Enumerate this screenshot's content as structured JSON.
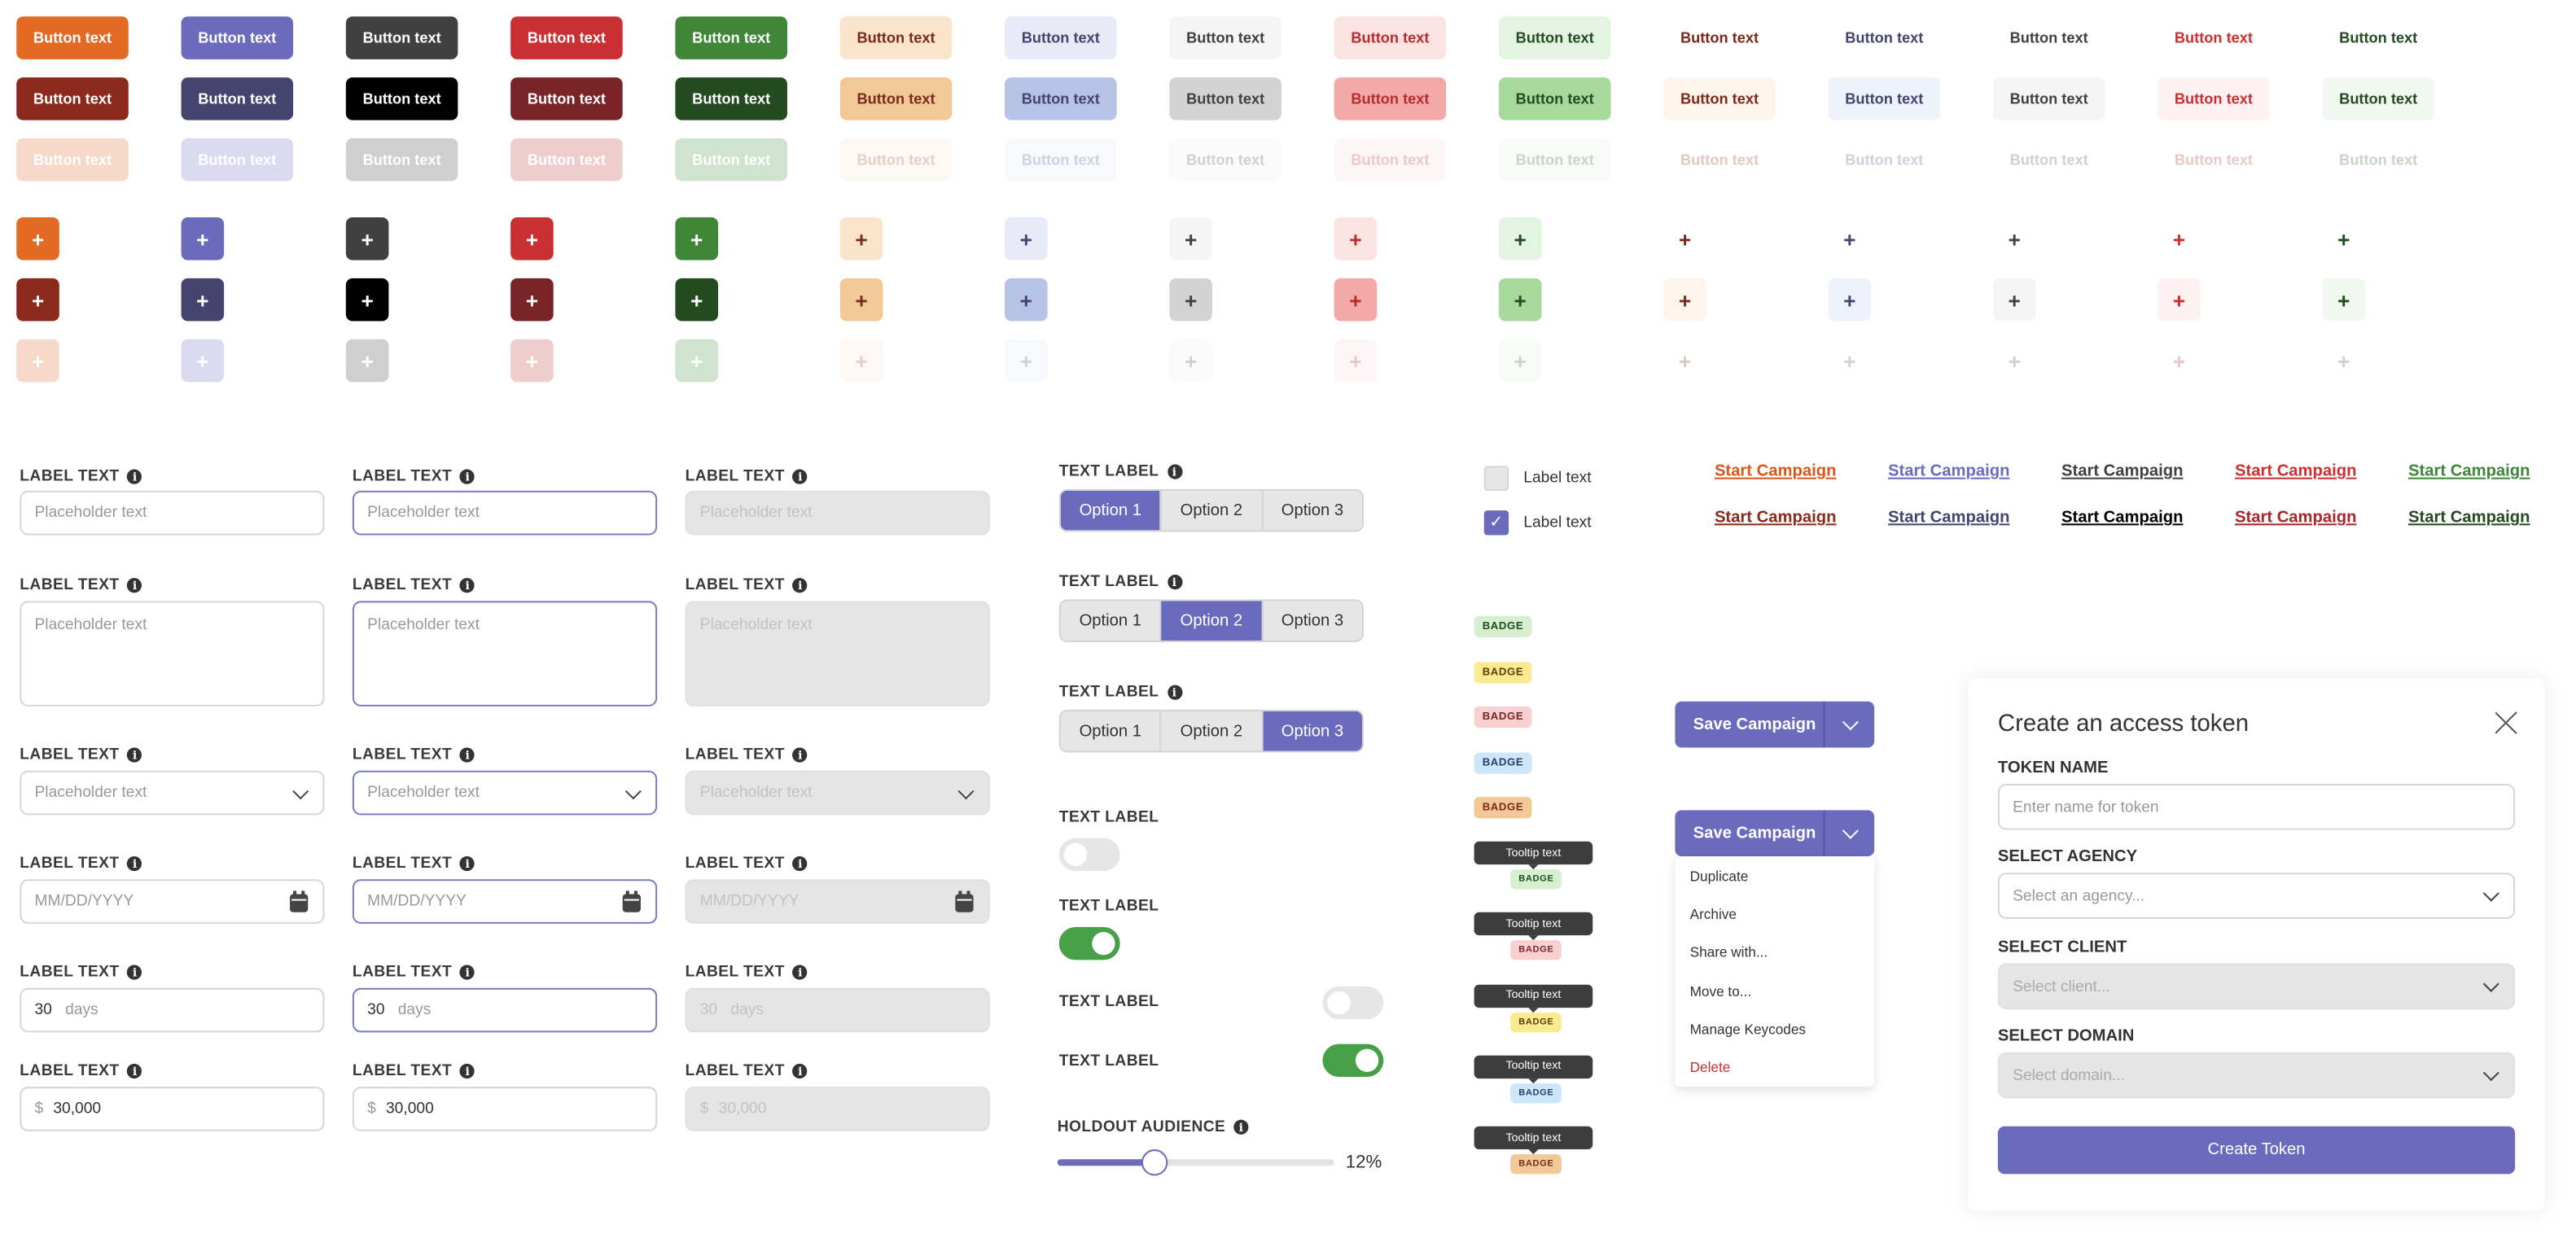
{
  "button_grid": {
    "label": "Button text",
    "icon_label": "+",
    "columns": [
      {
        "variant": "orange",
        "rows": [
          {
            "bg": "#E26A22",
            "fg": "#FFFFFF"
          },
          {
            "bg": "#8B2A1C",
            "fg": "#FFFFFF"
          },
          {
            "bg": "#F6D9C8",
            "fg": "#FFFFFF"
          }
        ]
      },
      {
        "variant": "purple",
        "rows": [
          {
            "bg": "#6B6BBD",
            "fg": "#FFFFFF"
          },
          {
            "bg": "#44446E",
            "fg": "#FFFFFF"
          },
          {
            "bg": "#DCDAF0",
            "fg": "#FFFFFF"
          }
        ]
      },
      {
        "variant": "dark",
        "rows": [
          {
            "bg": "#404040",
            "fg": "#FFFFFF"
          },
          {
            "bg": "#000000",
            "fg": "#FFFFFF"
          },
          {
            "bg": "#CFCFCF",
            "fg": "#FFFFFF"
          }
        ]
      },
      {
        "variant": "red",
        "rows": [
          {
            "bg": "#CA3032",
            "fg": "#FFFFFF"
          },
          {
            "bg": "#7A2428",
            "fg": "#FFFFFF"
          },
          {
            "bg": "#F0CDCD",
            "fg": "#FFFFFF"
          }
        ]
      },
      {
        "variant": "green",
        "rows": [
          {
            "bg": "#3F8638",
            "fg": "#FFFFFF"
          },
          {
            "bg": "#244A22",
            "fg": "#FFFFFF"
          },
          {
            "bg": "#D0E3CE",
            "fg": "#FFFFFF"
          }
        ]
      },
      {
        "variant": "peach",
        "rows": [
          {
            "bg": "#FBE4CC",
            "fg": "#7A2A1C"
          },
          {
            "bg": "#F2C896",
            "fg": "#7A2A1C"
          },
          {
            "bg": "#FDF8F3",
            "fg": "#E6CFC6"
          }
        ]
      },
      {
        "variant": "lavender",
        "rows": [
          {
            "bg": "#E8EAF7",
            "fg": "#44446E"
          },
          {
            "bg": "#B7C3E5",
            "fg": "#44446E"
          },
          {
            "bg": "#F8F9FD",
            "fg": "#D0D0E0"
          }
        ]
      },
      {
        "variant": "light-gray",
        "rows": [
          {
            "bg": "#F5F5F5",
            "fg": "#404040"
          },
          {
            "bg": "#D3D3D3",
            "fg": "#404040"
          },
          {
            "bg": "#FBFBFB",
            "fg": "#D0D0D0"
          }
        ]
      },
      {
        "variant": "pink",
        "rows": [
          {
            "bg": "#FBE3E2",
            "fg": "#B72C2C"
          },
          {
            "bg": "#F4A9A9",
            "fg": "#B72C2C"
          },
          {
            "bg": "#FEF6F6",
            "fg": "#EBC8C8"
          }
        ]
      },
      {
        "variant": "mint",
        "rows": [
          {
            "bg": "#E3F4E0",
            "fg": "#244A22"
          },
          {
            "bg": "#A6D99B",
            "fg": "#244A22"
          },
          {
            "bg": "#F8FBF7",
            "fg": "#C8D4C6"
          }
        ]
      },
      {
        "variant": "ghost-brown",
        "rows": [
          {
            "bg": "#FFFFFF",
            "fg": "#7A2A1C"
          },
          {
            "bg": "#FDF5EC",
            "fg": "#7A2A1C"
          },
          {
            "bg": "#FFFFFF",
            "fg": "#E2C8C0"
          }
        ]
      },
      {
        "variant": "ghost-navy",
        "rows": [
          {
            "bg": "#FFFFFF",
            "fg": "#44446E"
          },
          {
            "bg": "#EEF2FB",
            "fg": "#44446E"
          },
          {
            "bg": "#FFFFFF",
            "fg": "#D0D0E0"
          }
        ]
      },
      {
        "variant": "ghost-gray",
        "rows": [
          {
            "bg": "#FFFFFF",
            "fg": "#404040"
          },
          {
            "bg": "#F5F5F5",
            "fg": "#404040"
          },
          {
            "bg": "#FFFFFF",
            "fg": "#D0D0D0"
          }
        ]
      },
      {
        "variant": "ghost-red",
        "rows": [
          {
            "bg": "#FFFFFF",
            "fg": "#CA3032"
          },
          {
            "bg": "#FDF1F1",
            "fg": "#CA3032"
          },
          {
            "bg": "#FFFFFF",
            "fg": "#EBC8C8"
          }
        ]
      },
      {
        "variant": "ghost-green",
        "rows": [
          {
            "bg": "#FFFFFF",
            "fg": "#244A22"
          },
          {
            "bg": "#F1F8EF",
            "fg": "#244A22"
          },
          {
            "bg": "#FFFFFF",
            "fg": "#C8D4C6"
          }
        ]
      }
    ]
  },
  "form": {
    "label": "LABEL TEXT",
    "placeholder": "Placeholder text",
    "date_placeholder": "MM/DD/YYYY",
    "days_value": "30",
    "days_unit": "days",
    "currency_symbol": "$",
    "amount_value": "30,000",
    "states": [
      "default",
      "focus",
      "disabled"
    ]
  },
  "segmented": {
    "label": "TEXT LABEL",
    "options": [
      "Option 1",
      "Option 2",
      "Option 3"
    ],
    "selected": [
      0,
      1,
      2
    ]
  },
  "toggles": [
    {
      "label": "TEXT LABEL",
      "on": false
    },
    {
      "label": "TEXT LABEL",
      "on": true
    },
    {
      "label": "TEXT LABEL",
      "on": false
    },
    {
      "label": "TEXT LABEL",
      "on": true
    }
  ],
  "slider": {
    "label": "HOLDOUT AUDIENCE",
    "value": 12,
    "value_text": "12%"
  },
  "checkboxes": [
    {
      "label": "Label text",
      "checked": false
    },
    {
      "label": "Label text",
      "checked": true
    }
  ],
  "badges": [
    {
      "text": "BADGE",
      "bg": "#D5EFCF",
      "fg": "#244A22"
    },
    {
      "text": "BADGE",
      "bg": "#FBEA8F",
      "fg": "#5A4200"
    },
    {
      "text": "BADGE",
      "bg": "#F8D0D0",
      "fg": "#7A2428"
    },
    {
      "text": "BADGE",
      "bg": "#CDE6FA",
      "fg": "#24406E"
    },
    {
      "text": "BADGE",
      "bg": "#F2C896",
      "fg": "#7A2A1C"
    }
  ],
  "tooltip_text": "Tooltip text",
  "links": {
    "text": "Start Campaign",
    "colors": [
      [
        "#D9561C",
        "#8B2A1C"
      ],
      [
        "#6B6BBD",
        "#44446E"
      ],
      [
        "#404040",
        "#000000"
      ],
      [
        "#CA3032",
        "#A8262A"
      ],
      [
        "#3F8638",
        "#244A22"
      ]
    ]
  },
  "split_button": {
    "label": "Save Campaign",
    "menu": [
      "Duplicate",
      "Archive",
      "Share with...",
      "Move to...",
      "Manage Keycodes",
      "Delete"
    ]
  },
  "modal": {
    "title": "Create an access token",
    "token_name_label": "TOKEN NAME",
    "token_name_placeholder": "Enter name for token",
    "agency_label": "SELECT AGENCY",
    "agency_placeholder": "Select an agency...",
    "client_label": "SELECT CLIENT",
    "client_placeholder": "Select client...",
    "domain_label": "SELECT DOMAIN",
    "domain_placeholder": "Select domain...",
    "submit": "Create Token"
  },
  "accent": "#6B6BBD"
}
